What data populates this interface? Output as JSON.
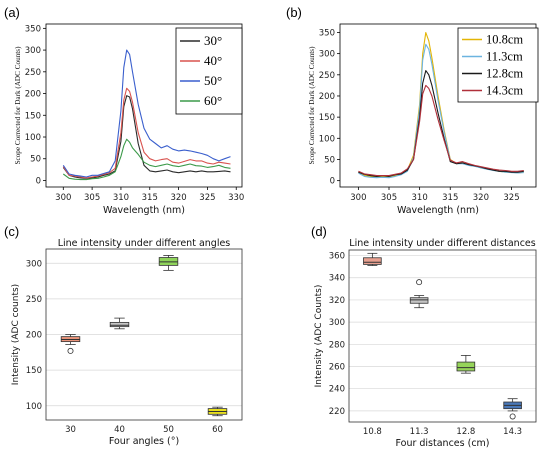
{
  "chart_data": [
    {
      "panel": "(a)",
      "type": "line",
      "title": "",
      "xlabel": "Wavelength (nm)",
      "ylabel": "Scope Corrected for Dark (ADC Counts)",
      "xlim": [
        297,
        331
      ],
      "ylim": [
        -15,
        360
      ],
      "xticks": [
        300,
        305,
        310,
        315,
        320,
        325,
        330
      ],
      "yticks": [
        0,
        50,
        100,
        150,
        200,
        250,
        300,
        350
      ],
      "legend_position": "top-right",
      "series": [
        {
          "name": "30°",
          "color": "#2b2b2b",
          "x": [
            300,
            301,
            302,
            303,
            304,
            305,
            306,
            307,
            308,
            309,
            310,
            310.5,
            311,
            311.5,
            312,
            313,
            314,
            315,
            316,
            317,
            318,
            319,
            320,
            321,
            322,
            323,
            324,
            325,
            326,
            327,
            328,
            329
          ],
          "y": [
            30,
            12,
            8,
            6,
            5,
            6,
            8,
            12,
            15,
            22,
            90,
            170,
            195,
            192,
            165,
            85,
            35,
            22,
            20,
            22,
            24,
            20,
            18,
            20,
            22,
            20,
            22,
            20,
            20,
            21,
            22,
            20
          ]
        },
        {
          "name": "40°",
          "color": "#d9534f",
          "x": [
            300,
            301,
            302,
            303,
            304,
            305,
            306,
            307,
            308,
            309,
            310,
            310.5,
            311,
            311.5,
            312,
            313,
            314,
            315,
            316,
            317,
            318,
            319,
            320,
            321,
            322,
            323,
            324,
            325,
            326,
            327,
            328,
            329
          ],
          "y": [
            32,
            12,
            10,
            8,
            6,
            8,
            10,
            14,
            18,
            28,
            110,
            185,
            212,
            205,
            180,
            110,
            65,
            50,
            45,
            48,
            50,
            42,
            40,
            44,
            48,
            45,
            45,
            40,
            38,
            42,
            40,
            38
          ]
        },
        {
          "name": "50°",
          "color": "#3a5fcd",
          "x": [
            300,
            301,
            302,
            303,
            304,
            305,
            306,
            307,
            308,
            309,
            310,
            310.5,
            311,
            311.5,
            312,
            313,
            314,
            315,
            316,
            317,
            318,
            319,
            320,
            321,
            322,
            323,
            324,
            325,
            326,
            327,
            328,
            329
          ],
          "y": [
            35,
            15,
            12,
            10,
            8,
            12,
            12,
            16,
            20,
            45,
            160,
            260,
            300,
            290,
            250,
            175,
            120,
            95,
            85,
            75,
            80,
            72,
            68,
            70,
            68,
            65,
            62,
            58,
            50,
            45,
            50,
            55
          ]
        },
        {
          "name": "60°",
          "color": "#3c9a4a",
          "x": [
            300,
            301,
            302,
            303,
            304,
            305,
            306,
            307,
            308,
            309,
            310,
            310.5,
            311,
            311.5,
            312,
            313,
            314,
            315,
            316,
            317,
            318,
            319,
            320,
            321,
            322,
            323,
            324,
            325,
            326,
            327,
            328,
            329
          ],
          "y": [
            15,
            5,
            3,
            2,
            2,
            4,
            5,
            8,
            12,
            20,
            55,
            80,
            95,
            88,
            75,
            60,
            42,
            35,
            32,
            35,
            38,
            34,
            32,
            35,
            38,
            34,
            33,
            30,
            32,
            35,
            30,
            28
          ]
        }
      ]
    },
    {
      "panel": "(b)",
      "type": "line",
      "title": "",
      "xlabel": "Wavelength (nm)",
      "ylabel": "Scope Corrected for Dark (ADC Counts)",
      "xlim": [
        297,
        329
      ],
      "ylim": [
        -15,
        370
      ],
      "xticks": [
        300,
        305,
        310,
        315,
        320,
        325
      ],
      "yticks": [
        0,
        50,
        100,
        150,
        200,
        250,
        300,
        350
      ],
      "legend_position": "top-right",
      "series": [
        {
          "name": "10.8cm",
          "color": "#e3b505",
          "x": [
            300,
            301,
            302,
            303,
            304,
            305,
            306,
            307,
            308,
            309,
            310,
            310.5,
            311,
            311.5,
            312,
            313,
            314,
            315,
            316,
            317,
            318,
            319,
            320,
            321,
            322,
            323,
            324,
            325,
            326,
            327
          ],
          "y": [
            20,
            12,
            10,
            8,
            10,
            8,
            12,
            15,
            25,
            60,
            180,
            300,
            350,
            330,
            290,
            200,
            120,
            50,
            40,
            42,
            38,
            35,
            30,
            28,
            25,
            22,
            20,
            20,
            18,
            20
          ]
        },
        {
          "name": "11.3cm",
          "color": "#6cb4e0",
          "x": [
            300,
            301,
            302,
            303,
            304,
            305,
            306,
            307,
            308,
            309,
            310,
            310.5,
            311,
            311.5,
            312,
            313,
            314,
            315,
            316,
            317,
            318,
            319,
            320,
            321,
            322,
            323,
            324,
            325,
            326,
            327
          ],
          "y": [
            18,
            10,
            8,
            7,
            8,
            7,
            10,
            14,
            22,
            55,
            170,
            285,
            322,
            310,
            275,
            190,
            115,
            48,
            40,
            40,
            36,
            34,
            30,
            27,
            24,
            22,
            20,
            19,
            18,
            19
          ]
        },
        {
          "name": "12.8cm",
          "color": "#1a1a1a",
          "x": [
            300,
            301,
            302,
            303,
            304,
            305,
            306,
            307,
            308,
            309,
            310,
            310.5,
            311,
            311.5,
            312,
            313,
            314,
            315,
            316,
            317,
            318,
            319,
            320,
            321,
            322,
            323,
            324,
            325,
            326,
            327
          ],
          "y": [
            20,
            15,
            12,
            10,
            12,
            10,
            14,
            16,
            25,
            50,
            150,
            230,
            260,
            250,
            225,
            160,
            100,
            45,
            40,
            42,
            38,
            35,
            32,
            28,
            25,
            22,
            22,
            20,
            20,
            22
          ]
        },
        {
          "name": "14.3cm",
          "color": "#b0303a",
          "x": [
            300,
            301,
            302,
            303,
            304,
            305,
            306,
            307,
            308,
            309,
            310,
            310.5,
            311,
            311.5,
            312,
            313,
            314,
            315,
            316,
            317,
            318,
            319,
            320,
            321,
            322,
            323,
            324,
            325,
            326,
            327
          ],
          "y": [
            22,
            16,
            14,
            12,
            12,
            12,
            15,
            18,
            28,
            50,
            140,
            205,
            225,
            218,
            200,
            145,
            95,
            48,
            42,
            45,
            40,
            36,
            33,
            30,
            27,
            25,
            24,
            22,
            22,
            24
          ]
        }
      ]
    },
    {
      "panel": "(c)",
      "type": "box",
      "title": "Line intensity under different angles",
      "xlabel": "Four angles (°)",
      "ylabel": "Intensity (ADC counts)",
      "ylim": [
        80,
        320
      ],
      "yticks": [
        100,
        150,
        200,
        250,
        300
      ],
      "categories": [
        "30",
        "40",
        "50",
        "60"
      ],
      "boxes": [
        {
          "color": "#e8937a",
          "min": 186,
          "q1": 190,
          "median": 193,
          "q3": 197,
          "max": 200,
          "outliers": [
            177
          ]
        },
        {
          "color": "#c8c8c8",
          "min": 208,
          "q1": 211,
          "median": 213,
          "q3": 217,
          "max": 223,
          "outliers": []
        },
        {
          "color": "#8fd45a",
          "min": 290,
          "q1": 297,
          "median": 302,
          "q3": 308,
          "max": 311,
          "outliers": []
        },
        {
          "color": "#e8e020",
          "min": 86,
          "q1": 88,
          "median": 92,
          "q3": 96,
          "max": 98,
          "outliers": []
        }
      ]
    },
    {
      "panel": "(d)",
      "type": "box",
      "title": "Line intensity under different distances",
      "xlabel": "Four distances (cm)",
      "ylabel": "Intensity (ADC Counts)",
      "ylim": [
        210,
        365
      ],
      "yticks": [
        220,
        240,
        260,
        280,
        300,
        320,
        340,
        360
      ],
      "categories": [
        "10.8",
        "11.3",
        "12.8",
        "14.3"
      ],
      "boxes": [
        {
          "color": "#e8a090",
          "min": 351,
          "q1": 352,
          "median": 354,
          "q3": 358,
          "max": 362,
          "outliers": []
        },
        {
          "color": "#c4c4c4",
          "min": 313,
          "q1": 317,
          "median": 320,
          "q3": 322,
          "max": 324,
          "outliers": [
            336
          ]
        },
        {
          "color": "#96d45a",
          "min": 254,
          "q1": 256,
          "median": 259,
          "q3": 264,
          "max": 270,
          "outliers": []
        },
        {
          "color": "#4a78b8",
          "min": 220,
          "q1": 222,
          "median": 225,
          "q3": 228,
          "max": 231,
          "outliers": [
            215
          ]
        }
      ]
    }
  ]
}
